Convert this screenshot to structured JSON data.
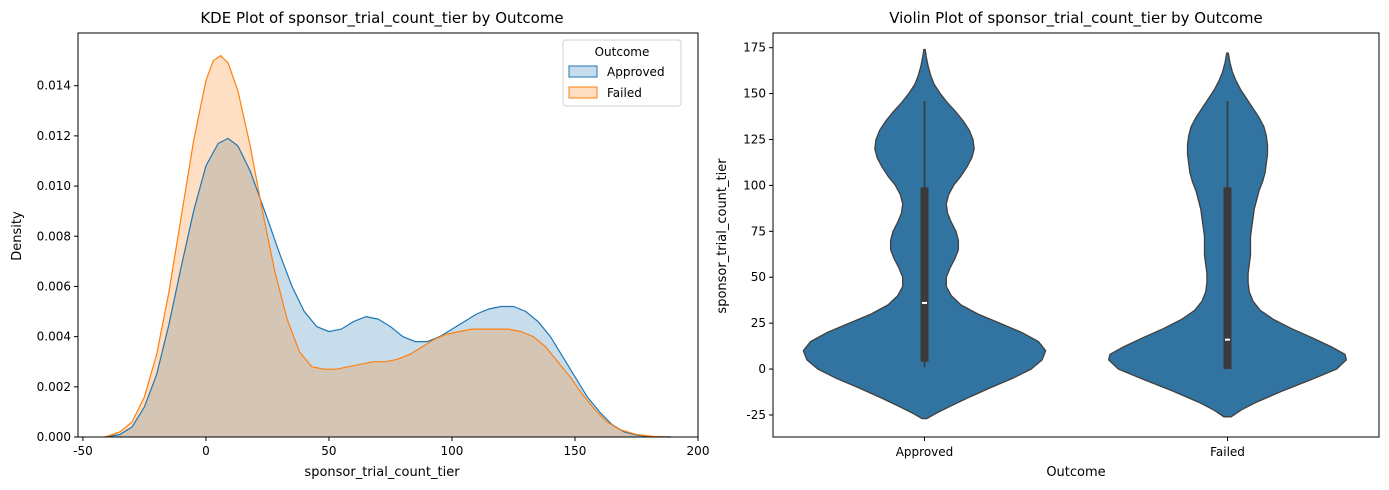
{
  "chart_data": [
    {
      "type": "kde",
      "title": "KDE Plot of sponsor_trial_count_tier by Outcome",
      "xlabel": "sponsor_trial_count_tier",
      "ylabel": "Density",
      "xlim": [
        -52,
        200
      ],
      "ylim": [
        0,
        0.0161
      ],
      "xticks": [
        -50,
        0,
        50,
        100,
        150,
        200
      ],
      "yticks": [
        0.0,
        0.002,
        0.004,
        0.006,
        0.008,
        0.01,
        0.012,
        0.014
      ],
      "ytick_labels": [
        "0.000",
        "0.002",
        "0.004",
        "0.006",
        "0.008",
        "0.010",
        "0.012",
        "0.014"
      ],
      "legend": {
        "title": "Outcome",
        "position": "top-right"
      },
      "series": [
        {
          "name": "Approved",
          "color": "#1f77b4",
          "fill": "rgba(31,119,180,0.25)",
          "points": [
            [
              -41,
              0
            ],
            [
              -35,
              0.0001
            ],
            [
              -30,
              0.0004
            ],
            [
              -25,
              0.0012
            ],
            [
              -20,
              0.0025
            ],
            [
              -15,
              0.0045
            ],
            [
              -10,
              0.0068
            ],
            [
              -5,
              0.009
            ],
            [
              0,
              0.0108
            ],
            [
              5,
              0.0117
            ],
            [
              9,
              0.0119
            ],
            [
              13,
              0.0116
            ],
            [
              18,
              0.0106
            ],
            [
              25,
              0.0087
            ],
            [
              30,
              0.0073
            ],
            [
              35,
              0.006
            ],
            [
              40,
              0.005
            ],
            [
              45,
              0.0044
            ],
            [
              50,
              0.0042
            ],
            [
              55,
              0.0043
            ],
            [
              60,
              0.0046
            ],
            [
              65,
              0.0048
            ],
            [
              70,
              0.0047
            ],
            [
              75,
              0.0044
            ],
            [
              80,
              0.004
            ],
            [
              85,
              0.0038
            ],
            [
              90,
              0.0038
            ],
            [
              95,
              0.004
            ],
            [
              100,
              0.0043
            ],
            [
              105,
              0.0046
            ],
            [
              110,
              0.0049
            ],
            [
              115,
              0.0051
            ],
            [
              120,
              0.0052
            ],
            [
              125,
              0.0052
            ],
            [
              130,
              0.005
            ],
            [
              135,
              0.0046
            ],
            [
              140,
              0.004
            ],
            [
              145,
              0.0032
            ],
            [
              150,
              0.0024
            ],
            [
              155,
              0.0016
            ],
            [
              160,
              0.001
            ],
            [
              165,
              0.0005
            ],
            [
              170,
              0.0002
            ],
            [
              175,
              8e-05
            ],
            [
              180,
              2e-05
            ],
            [
              189,
              0
            ]
          ]
        },
        {
          "name": "Failed",
          "color": "#ff7f0e",
          "fill": "rgba(255,127,14,0.25)",
          "points": [
            [
              -41,
              0
            ],
            [
              -35,
              0.0002
            ],
            [
              -30,
              0.0006
            ],
            [
              -25,
              0.0016
            ],
            [
              -20,
              0.0033
            ],
            [
              -15,
              0.0058
            ],
            [
              -10,
              0.0088
            ],
            [
              -5,
              0.0118
            ],
            [
              0,
              0.0142
            ],
            [
              3,
              0.015
            ],
            [
              6,
              0.0152
            ],
            [
              9,
              0.0149
            ],
            [
              13,
              0.0138
            ],
            [
              18,
              0.0116
            ],
            [
              23,
              0.009
            ],
            [
              28,
              0.0066
            ],
            [
              33,
              0.0047
            ],
            [
              38,
              0.0034
            ],
            [
              43,
              0.0028
            ],
            [
              48,
              0.0027
            ],
            [
              53,
              0.0027
            ],
            [
              58,
              0.0028
            ],
            [
              63,
              0.0029
            ],
            [
              68,
              0.003
            ],
            [
              73,
              0.003
            ],
            [
              78,
              0.0031
            ],
            [
              83,
              0.0033
            ],
            [
              88,
              0.0036
            ],
            [
              93,
              0.0039
            ],
            [
              98,
              0.0041
            ],
            [
              103,
              0.0042
            ],
            [
              108,
              0.0043
            ],
            [
              113,
              0.0043
            ],
            [
              118,
              0.0043
            ],
            [
              123,
              0.0043
            ],
            [
              128,
              0.0042
            ],
            [
              133,
              0.004
            ],
            [
              138,
              0.0036
            ],
            [
              143,
              0.003
            ],
            [
              148,
              0.0024
            ],
            [
              153,
              0.0017
            ],
            [
              158,
              0.0011
            ],
            [
              163,
              0.0006
            ],
            [
              168,
              0.0003
            ],
            [
              175,
              0.0001
            ],
            [
              182,
              2e-05
            ],
            [
              189,
              0
            ]
          ]
        }
      ]
    },
    {
      "type": "violin",
      "title": "Violin Plot of sponsor_trial_count_tier by Outcome",
      "xlabel": "Outcome",
      "ylabel": "sponsor_trial_count_tier",
      "categories": [
        "Approved",
        "Failed"
      ],
      "ylim": [
        -37,
        183
      ],
      "yticks": [
        -25,
        0,
        25,
        50,
        75,
        100,
        125,
        150,
        175
      ],
      "color": "#3274a1",
      "edge_color": "#404040",
      "series": [
        {
          "name": "Approved",
          "profile": [
            [
              -27,
              0.02
            ],
            [
              -24,
              0.1
            ],
            [
              -20,
              0.22
            ],
            [
              -15,
              0.38
            ],
            [
              -10,
              0.55
            ],
            [
              -5,
              0.73
            ],
            [
              0,
              0.88
            ],
            [
              5,
              0.97
            ],
            [
              10,
              1.0
            ],
            [
              15,
              0.94
            ],
            [
              20,
              0.8
            ],
            [
              25,
              0.62
            ],
            [
              30,
              0.44
            ],
            [
              35,
              0.3
            ],
            [
              40,
              0.22
            ],
            [
              45,
              0.18
            ],
            [
              50,
              0.18
            ],
            [
              55,
              0.21
            ],
            [
              60,
              0.25
            ],
            [
              65,
              0.28
            ],
            [
              70,
              0.28
            ],
            [
              75,
              0.26
            ],
            [
              80,
              0.22
            ],
            [
              85,
              0.19
            ],
            [
              90,
              0.18
            ],
            [
              95,
              0.2
            ],
            [
              100,
              0.24
            ],
            [
              105,
              0.3
            ],
            [
              110,
              0.35
            ],
            [
              115,
              0.39
            ],
            [
              120,
              0.41
            ],
            [
              125,
              0.4
            ],
            [
              130,
              0.37
            ],
            [
              135,
              0.32
            ],
            [
              140,
              0.26
            ],
            [
              145,
              0.19
            ],
            [
              150,
              0.13
            ],
            [
              155,
              0.08
            ],
            [
              160,
              0.05
            ],
            [
              165,
              0.03
            ],
            [
              170,
              0.015
            ],
            [
              174,
              0.005
            ]
          ],
          "whisker": [
            1,
            146
          ],
          "q1": 4,
          "q3": 99,
          "median": 36
        },
        {
          "name": "Failed",
          "profile": [
            [
              -26,
              0.03
            ],
            [
              -22,
              0.12
            ],
            [
              -18,
              0.24
            ],
            [
              -12,
              0.45
            ],
            [
              -6,
              0.68
            ],
            [
              0,
              0.9
            ],
            [
              5,
              0.98
            ],
            [
              8,
              0.97
            ],
            [
              12,
              0.86
            ],
            [
              17,
              0.7
            ],
            [
              22,
              0.53
            ],
            [
              27,
              0.38
            ],
            [
              32,
              0.27
            ],
            [
              37,
              0.21
            ],
            [
              42,
              0.18
            ],
            [
              47,
              0.17
            ],
            [
              52,
              0.17
            ],
            [
              57,
              0.18
            ],
            [
              62,
              0.19
            ],
            [
              67,
              0.19
            ],
            [
              72,
              0.19
            ],
            [
              77,
              0.2
            ],
            [
              82,
              0.21
            ],
            [
              87,
              0.22
            ],
            [
              92,
              0.24
            ],
            [
              97,
              0.26
            ],
            [
              102,
              0.29
            ],
            [
              107,
              0.31
            ],
            [
              112,
              0.32
            ],
            [
              117,
              0.33
            ],
            [
              122,
              0.33
            ],
            [
              127,
              0.32
            ],
            [
              132,
              0.3
            ],
            [
              137,
              0.26
            ],
            [
              142,
              0.21
            ],
            [
              147,
              0.16
            ],
            [
              152,
              0.11
            ],
            [
              157,
              0.07
            ],
            [
              162,
              0.04
            ],
            [
              167,
              0.02
            ],
            [
              172,
              0.007
            ]
          ],
          "whisker": [
            0,
            146
          ],
          "q1": 0,
          "q3": 99,
          "median": 16
        }
      ]
    }
  ]
}
